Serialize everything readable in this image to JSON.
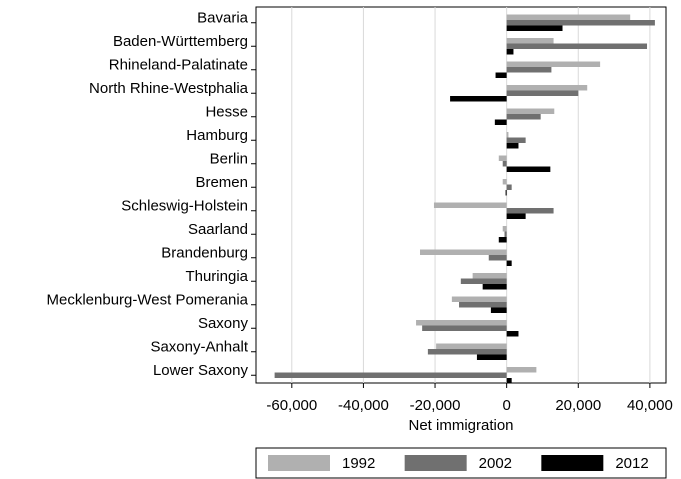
{
  "chart_data": {
    "type": "hbar",
    "xlabel": "Net immigration",
    "categories": [
      "Bavaria",
      "Baden-Württemberg",
      "Rhineland-Palatinate",
      "North Rhine-Westphalia",
      "Hesse",
      "Hamburg",
      "Berlin",
      "Bremen",
      "Schleswig-Holstein",
      "Saarland",
      "Brandenburg",
      "Thuringia",
      "Mecklenburg-West Pomerania",
      "Saxony",
      "Saxony-Anhalt",
      "Lower Saxony"
    ],
    "series": [
      {
        "name": "1992",
        "color": "#b0b0b0",
        "values": [
          34500,
          13100,
          26100,
          22500,
          13300,
          500,
          -2200,
          -1100,
          -20300,
          -1100,
          -24200,
          -9500,
          -15300,
          -25300,
          -19700,
          8300
        ]
      },
      {
        "name": "2002",
        "color": "#707070",
        "values": [
          41400,
          39200,
          12500,
          20000,
          9500,
          5300,
          -1100,
          1400,
          13100,
          -600,
          -5000,
          -12800,
          -13300,
          -23600,
          -22000,
          -64800
        ]
      },
      {
        "name": "2012",
        "color": "#000000",
        "values": [
          15600,
          1900,
          -3100,
          -15800,
          -3300,
          3300,
          12200,
          -300,
          5300,
          -2200,
          1400,
          -6700,
          -4400,
          3300,
          -8300,
          1400
        ]
      }
    ],
    "xlim": [
      -70000,
      44500
    ],
    "xticks": [
      {
        "value": -60000,
        "label": "-60,000"
      },
      {
        "value": -40000,
        "label": "-40,000"
      },
      {
        "value": -20000,
        "label": "-20,000"
      },
      0,
      {
        "value": 20000,
        "label": "20,000"
      },
      {
        "value": 40000,
        "label": "40,000"
      }
    ],
    "grid": true,
    "legend": "bottom"
  }
}
